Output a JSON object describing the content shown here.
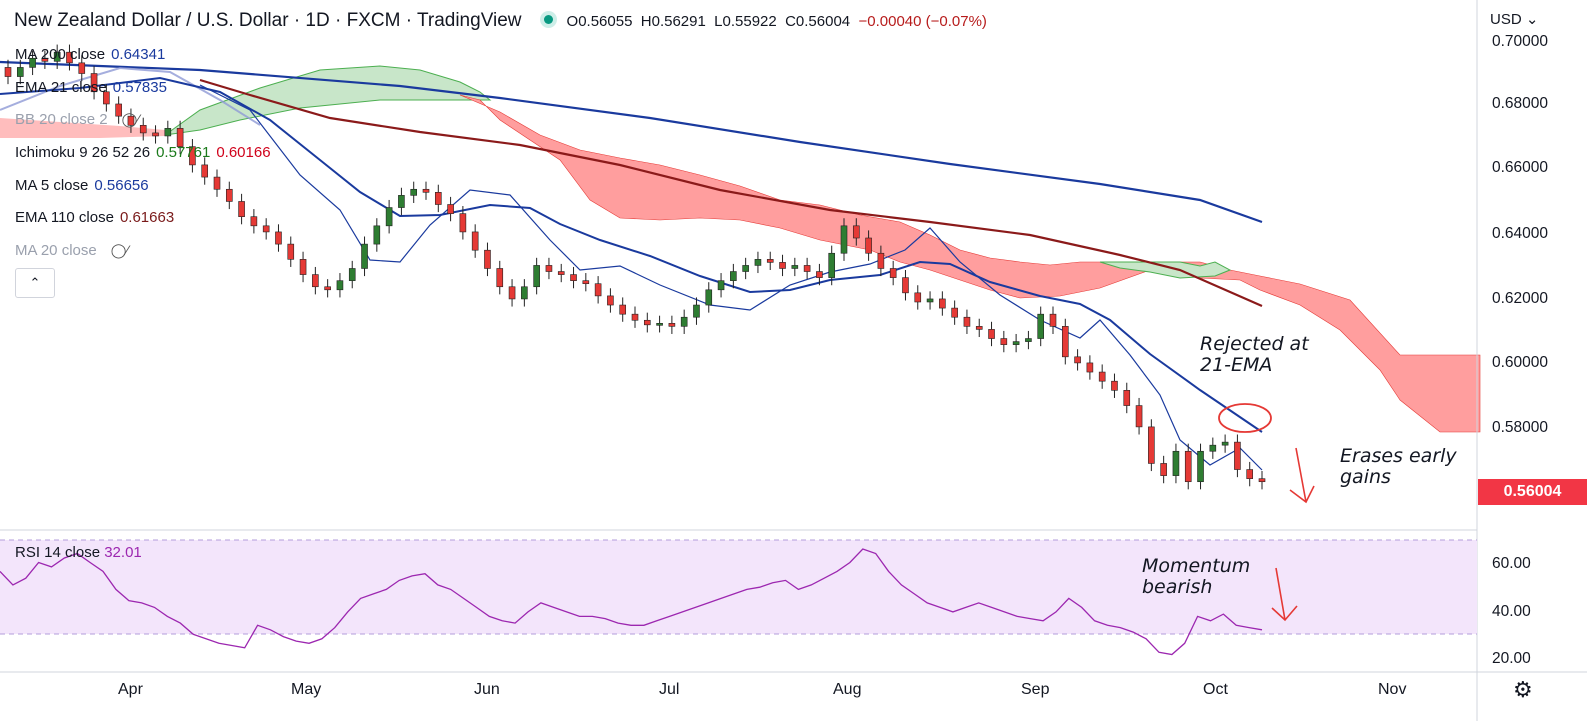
{
  "header": {
    "title": "New Zealand Dollar / U.S. Dollar · 1D · FXCM · TradingView",
    "open": "O0.56055",
    "high": "H0.56291",
    "low": "L0.55922",
    "close": "C0.56004",
    "change": "−0.00040 (−0.07%)"
  },
  "legend": [
    {
      "label": "MA 200 close",
      "value": "0.64341",
      "color": "#1a3a9e"
    },
    {
      "label": "EMA 21 close",
      "value": "0.57835",
      "color": "#1a3a9e"
    },
    {
      "label": "BB 20 close 2",
      "value": "",
      "color": "#9aa0ad",
      "hidden": true
    },
    {
      "label": "Ichimoku 9 26 52 26",
      "value": "0.57761",
      "value2": "0.60166",
      "color": "#1b7a1b",
      "color2": "#d0021b"
    },
    {
      "label": "MA 5 close",
      "value": "0.56656",
      "color": "#1a3a9e"
    },
    {
      "label": "EMA 110 close",
      "value": "0.61663",
      "color": "#7a1a1a"
    },
    {
      "label": "MA 20 close",
      "value": "",
      "color": "#9aa0ad",
      "hidden": true
    }
  ],
  "price_axis": {
    "currency": "USD",
    "ticks": [
      "0.70000",
      "0.68000",
      "0.66000",
      "0.64000",
      "0.62000",
      "0.60000",
      "0.58000"
    ],
    "last_price": "0.56004"
  },
  "time_axis": [
    "Apr",
    "May",
    "Jun",
    "Jul",
    "Aug",
    "Sep",
    "Oct",
    "Nov"
  ],
  "rsi": {
    "label": "RSI 14 close",
    "value": "32.01",
    "ticks": [
      "60.00",
      "40.00",
      "20.00"
    ],
    "upper": 70,
    "lower": 30
  },
  "annotations": {
    "rejected": "Rejected at\n21-EMA",
    "erases": "Erases early\ngains",
    "momentum": "Momentum\nbearish"
  },
  "colors": {
    "up": "#2e7d32",
    "down": "#e53935",
    "cloud_bull": "#a5d6a7",
    "cloud_bear": "#ff8a80",
    "ma200": "#1a3a9e",
    "ema21": "#1a3a9e",
    "ema110": "#8b1a1a",
    "rsi_line": "#9c27b0",
    "rsi_band": "#f3e5fb",
    "annotation": "#e53935"
  },
  "chart_data": {
    "type": "candlestick",
    "title": "New Zealand Dollar / U.S. Dollar · 1D · FXCM",
    "ylim": [
      0.554,
      0.705
    ],
    "x_labels": [
      "Apr",
      "May",
      "Jun",
      "Jul",
      "Aug",
      "Sep",
      "Oct",
      "Nov"
    ],
    "closes": [
      0.693,
      0.696,
      0.699,
      0.698,
      0.701,
      0.6975,
      0.694,
      0.688,
      0.684,
      0.68,
      0.677,
      0.6745,
      0.6735,
      0.676,
      0.67,
      0.664,
      0.66,
      0.656,
      0.652,
      0.647,
      0.644,
      0.642,
      0.638,
      0.633,
      0.628,
      0.624,
      0.623,
      0.626,
      0.63,
      0.638,
      0.644,
      0.65,
      0.654,
      0.656,
      0.655,
      0.651,
      0.648,
      0.642,
      0.636,
      0.63,
      0.624,
      0.62,
      0.624,
      0.631,
      0.629,
      0.628,
      0.626,
      0.625,
      0.621,
      0.618,
      0.615,
      0.613,
      0.6115,
      0.612,
      0.611,
      0.614,
      0.618,
      0.623,
      0.626,
      0.629,
      0.631,
      0.633,
      0.632,
      0.63,
      0.631,
      0.629,
      0.627,
      0.635,
      0.644,
      0.64,
      0.635,
      0.63,
      0.627,
      0.622,
      0.619,
      0.62,
      0.617,
      0.614,
      0.611,
      0.61,
      0.607,
      0.605,
      0.606,
      0.607,
      0.615,
      0.611,
      0.601,
      0.599,
      0.596,
      0.593,
      0.59,
      0.585,
      0.578,
      0.566,
      0.562,
      0.57,
      0.56,
      0.57,
      0.572,
      0.573,
      0.564,
      0.561,
      0.56
    ],
    "ema21_last": 0.57835,
    "ma200_last": 0.64341,
    "ema110_last": 0.61663,
    "rsi_ylim": [
      15,
      72
    ],
    "rsi_values": [
      58,
      52,
      55,
      62,
      60,
      64,
      66,
      62,
      58,
      50,
      45,
      44,
      42,
      38,
      35,
      30,
      28,
      26,
      25,
      24,
      34,
      32,
      29,
      27,
      26,
      28,
      33,
      40,
      46,
      48,
      50,
      54,
      56,
      57,
      52,
      50,
      46,
      42,
      38,
      36,
      35,
      40,
      44,
      42,
      40,
      38,
      38,
      37,
      35,
      34,
      34,
      36,
      38,
      40,
      42,
      44,
      46,
      48,
      50,
      51,
      53,
      54,
      50,
      52,
      55,
      58,
      62,
      68,
      66,
      58,
      52,
      48,
      44,
      42,
      40,
      42,
      44,
      42,
      40,
      38,
      37,
      36,
      40,
      46,
      42,
      36,
      34,
      33,
      31,
      28,
      22,
      21,
      26,
      38,
      36,
      39,
      34,
      33,
      32
    ]
  }
}
